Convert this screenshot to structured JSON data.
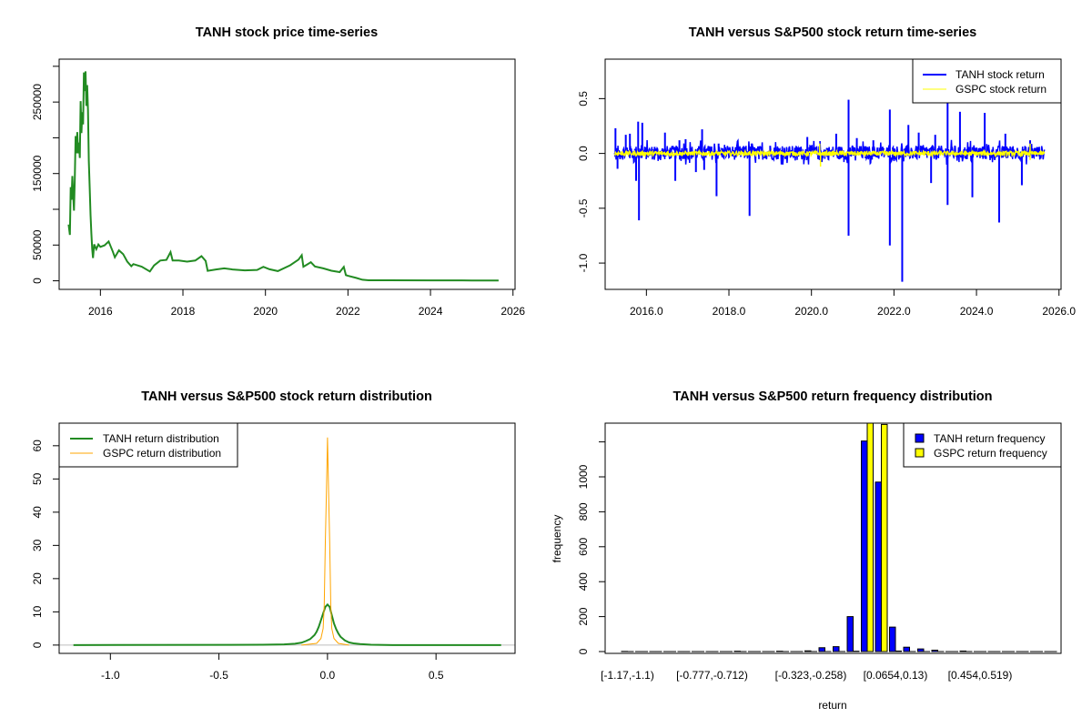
{
  "chart_data": [
    {
      "id": "price",
      "type": "line",
      "title": "TANH stock price time-series",
      "xlabel": "",
      "ylabel": "",
      "xlim": [
        2015.0,
        2026.05
      ],
      "ylim": [
        -12000,
        310000
      ],
      "xticks": [
        2016,
        2018,
        2020,
        2022,
        2024,
        2026
      ],
      "yticks": [
        0,
        50000,
        150000,
        250000
      ],
      "yticks_minor_unlabeled": [
        100000,
        200000,
        300000
      ],
      "series": [
        {
          "name": "TANH price",
          "color": "#228B22",
          "x": [
            2015.23,
            2015.26,
            2015.28,
            2015.3,
            2015.32,
            2015.34,
            2015.36,
            2015.38,
            2015.4,
            2015.42,
            2015.44,
            2015.46,
            2015.48,
            2015.5,
            2015.52,
            2015.54,
            2015.56,
            2015.58,
            2015.6,
            2015.62,
            2015.64,
            2015.66,
            2015.68,
            2015.7,
            2015.72,
            2015.74,
            2015.76,
            2015.78,
            2015.8,
            2015.82,
            2015.85,
            2015.9,
            2015.95,
            2016.0,
            2016.1,
            2016.2,
            2016.3,
            2016.35,
            2016.45,
            2016.55,
            2016.65,
            2016.75,
            2016.8,
            2017.0,
            2017.2,
            2017.3,
            2017.45,
            2017.6,
            2017.7,
            2017.75,
            2017.9,
            2018.1,
            2018.3,
            2018.45,
            2018.55,
            2018.6,
            2018.8,
            2019.0,
            2019.2,
            2019.5,
            2019.8,
            2019.95,
            2020.1,
            2020.3,
            2020.6,
            2020.8,
            2020.88,
            2020.92,
            2021.0,
            2021.1,
            2021.2,
            2021.4,
            2021.6,
            2021.8,
            2021.9,
            2021.95,
            2022.0,
            2022.2,
            2022.35,
            2022.5,
            2023.0,
            2024.0,
            2025.0,
            2025.65
          ],
          "y": [
            78000,
            65000,
            130000,
            110000,
            145000,
            120000,
            100000,
            140000,
            200000,
            175000,
            205000,
            180000,
            190000,
            175000,
            250000,
            210000,
            240000,
            215000,
            285000,
            260000,
            300000,
            245000,
            270000,
            240000,
            170000,
            130000,
            90000,
            65000,
            45000,
            32000,
            50000,
            45000,
            52000,
            48000,
            50000,
            55000,
            40000,
            33000,
            42000,
            38000,
            27000,
            20000,
            23000,
            20000,
            13000,
            21000,
            28000,
            30000,
            40000,
            29000,
            28000,
            27000,
            28000,
            35000,
            28000,
            14000,
            16000,
            17000,
            16000,
            15000,
            15500,
            20000,
            16000,
            14000,
            22000,
            30000,
            36000,
            20000,
            22000,
            26000,
            20000,
            17000,
            14000,
            12000,
            20000,
            8000,
            7000,
            4000,
            1500,
            800,
            700,
            600,
            500,
            500
          ]
        }
      ]
    },
    {
      "id": "returns",
      "type": "line",
      "title": "TANH versus S&P500 stock return time-series",
      "xlabel": "",
      "ylabel": "",
      "xlim": [
        2015.0,
        2026.05
      ],
      "ylim": [
        -1.24,
        0.86
      ],
      "xticks": [
        2016,
        2018,
        2020,
        2022,
        2024,
        2026
      ],
      "yticks": [
        -1.0,
        -0.5,
        0.0,
        0.5
      ],
      "legend": {
        "position": "top-right",
        "entries": [
          {
            "label": "TANH stock return",
            "color": "#0000FF"
          },
          {
            "label": "GSPC stock return",
            "color": "#FFFF00"
          }
        ]
      },
      "series": [
        {
          "name": "TANH stock return",
          "color": "#0000FF",
          "spikes": [
            [
              2015.25,
              0.23
            ],
            [
              2015.3,
              -0.14
            ],
            [
              2015.5,
              0.17
            ],
            [
              2015.6,
              0.18
            ],
            [
              2015.75,
              -0.25
            ],
            [
              2015.8,
              0.29
            ],
            [
              2015.82,
              -0.61
            ],
            [
              2015.9,
              0.28
            ],
            [
              2016.2,
              0.06
            ],
            [
              2016.45,
              0.19
            ],
            [
              2016.7,
              -0.25
            ],
            [
              2016.8,
              0.12
            ],
            [
              2016.95,
              0.13
            ],
            [
              2017.2,
              -0.17
            ],
            [
              2017.35,
              0.22
            ],
            [
              2017.4,
              -0.15
            ],
            [
              2017.7,
              -0.39
            ],
            [
              2017.75,
              0.09
            ],
            [
              2018.2,
              0.08
            ],
            [
              2018.5,
              -0.57
            ],
            [
              2018.55,
              0.09
            ],
            [
              2019.0,
              0.07
            ],
            [
              2019.4,
              0.05
            ],
            [
              2019.9,
              0.15
            ],
            [
              2020.2,
              -0.06
            ],
            [
              2020.6,
              0.18
            ],
            [
              2020.9,
              0.49
            ],
            [
              2020.9,
              -0.75
            ],
            [
              2021.1,
              0.14
            ],
            [
              2021.5,
              0.12
            ],
            [
              2021.9,
              0.4
            ],
            [
              2021.9,
              -0.84
            ],
            [
              2022.2,
              -1.17
            ],
            [
              2022.35,
              0.26
            ],
            [
              2022.6,
              0.19
            ],
            [
              2022.9,
              -0.27
            ],
            [
              2023.0,
              0.17
            ],
            [
              2023.3,
              0.46
            ],
            [
              2023.3,
              -0.47
            ],
            [
              2023.6,
              0.38
            ],
            [
              2023.9,
              -0.4
            ],
            [
              2024.2,
              0.37
            ],
            [
              2024.55,
              -0.63
            ],
            [
              2024.7,
              0.18
            ],
            [
              2025.1,
              -0.29
            ],
            [
              2025.3,
              0.12
            ]
          ],
          "noise_band": 0.08
        },
        {
          "name": "GSPC stock return",
          "color": "#FFFF00",
          "noise_band": 0.02,
          "notable": [
            [
              2020.2,
              0.09
            ],
            [
              2020.22,
              -0.12
            ],
            [
              2025.3,
              0.09
            ],
            [
              2025.3,
              -0.06
            ]
          ]
        }
      ]
    },
    {
      "id": "density",
      "type": "line",
      "title": "TANH versus S&P500 stock return distribution",
      "xlabel": "",
      "ylabel": "",
      "xlim": [
        -1.236,
        0.864
      ],
      "ylim": [
        -2.5,
        66.8
      ],
      "xticks": [
        -1.0,
        -0.5,
        0.0,
        0.5
      ],
      "yticks": [
        0,
        10,
        20,
        30,
        40,
        50,
        60
      ],
      "legend": {
        "position": "top-left",
        "entries": [
          {
            "label": "TANH return distribution",
            "color": "#228B22"
          },
          {
            "label": "GSPC return distribution",
            "color": "#FFA500"
          }
        ]
      },
      "series": [
        {
          "name": "TANH return distribution",
          "color": "#228B22",
          "x": [
            -1.17,
            -0.3,
            -0.2,
            -0.15,
            -0.12,
            -0.1,
            -0.08,
            -0.06,
            -0.05,
            -0.04,
            -0.03,
            -0.02,
            -0.01,
            0.0,
            0.01,
            0.02,
            0.03,
            0.04,
            0.05,
            0.06,
            0.08,
            0.1,
            0.12,
            0.15,
            0.2,
            0.3,
            0.8
          ],
          "y": [
            0,
            0.1,
            0.2,
            0.4,
            0.7,
            1.2,
            1.8,
            3.0,
            4.0,
            5.5,
            7.5,
            9.5,
            11.5,
            12.2,
            11.5,
            9.0,
            6.5,
            4.8,
            3.5,
            2.5,
            1.4,
            0.8,
            0.5,
            0.3,
            0.1,
            0.0,
            0.0
          ]
        },
        {
          "name": "GSPC return distribution",
          "color": "#FFA500",
          "x": [
            -0.12,
            -0.05,
            -0.03,
            -0.02,
            -0.015,
            -0.01,
            -0.005,
            0.0,
            0.005,
            0.01,
            0.015,
            0.02,
            0.03,
            0.05,
            0.1
          ],
          "y": [
            0,
            0.5,
            2.0,
            5.0,
            12.0,
            31.0,
            46.0,
            62.5,
            46.0,
            31.0,
            12.0,
            5.0,
            2.0,
            0.5,
            0
          ]
        }
      ]
    },
    {
      "id": "histogram",
      "type": "bar",
      "title": "TANH versus S&P500 return frequency distribution",
      "xlabel": "return",
      "ylabel": "frequency",
      "ylim": [
        0,
        1200
      ],
      "yticks": [
        0,
        200,
        400,
        600,
        800,
        1000
      ],
      "yticks_minor_unlabeled": [
        1200
      ],
      "categories": [
        "[-1.17,-1.1)",
        "[-1.1,-1.04)",
        "[-1.04,-0.972)",
        "[-0.972,-0.907)",
        "[-0.907,-0.842)",
        "[-0.842,-0.777)",
        "[-0.777,-0.712)",
        "[-0.712,-0.647)",
        "[-0.647,-0.582)",
        "[-0.582,-0.518)",
        "[-0.518,-0.453)",
        "[-0.453,-0.388)",
        "[-0.388,-0.323)",
        "[-0.323,-0.258)",
        "[-0.258,-0.193)",
        "[-0.193,-0.129)",
        "[-0.129,-0.0638)",
        "[-0.0638,0.00102)",
        "[0.00102,0.0654)",
        "[0.0654,0.13)",
        "[0.13,0.195)",
        "[0.195,0.26)",
        "[0.26,0.325)",
        "[0.325,0.389)",
        "[0.389,0.454)",
        "[0.454,0.519)",
        "[0.519,0.584)",
        "[0.584,0.649)",
        "[0.649,0.714)",
        "[0.714,0.779)",
        "[0.779,0.844)"
      ],
      "tick_labels_shown": [
        "[-1.17,-1.1)",
        "[-0.777,-0.712)",
        "[-0.323,-0.258)",
        "[0.0654,0.13)",
        "[0.454,0.519)"
      ],
      "legend": {
        "position": "top-right",
        "entries": [
          {
            "label": "TANH return frequency",
            "color": "#0000FF"
          },
          {
            "label": "GSPC return frequency",
            "color": "#FFFF00"
          }
        ]
      },
      "series": [
        {
          "name": "TANH return frequency",
          "color": "#0000FF",
          "values": [
            1,
            0,
            0,
            0,
            0,
            0,
            0,
            0,
            2,
            0,
            0,
            2,
            0,
            4,
            22,
            28,
            200,
            1205,
            970,
            140,
            25,
            15,
            8,
            0,
            3,
            0,
            0,
            0,
            0,
            0,
            0
          ]
        },
        {
          "name": "GSPC return frequency",
          "color": "#FFFF00",
          "values": [
            0,
            0,
            0,
            0,
            0,
            0,
            0,
            0,
            0,
            0,
            0,
            0,
            0,
            0,
            0,
            0,
            2,
            1430,
            1300,
            3,
            0,
            0,
            0,
            0,
            0,
            0,
            0,
            0,
            0,
            0,
            0
          ]
        }
      ]
    }
  ]
}
